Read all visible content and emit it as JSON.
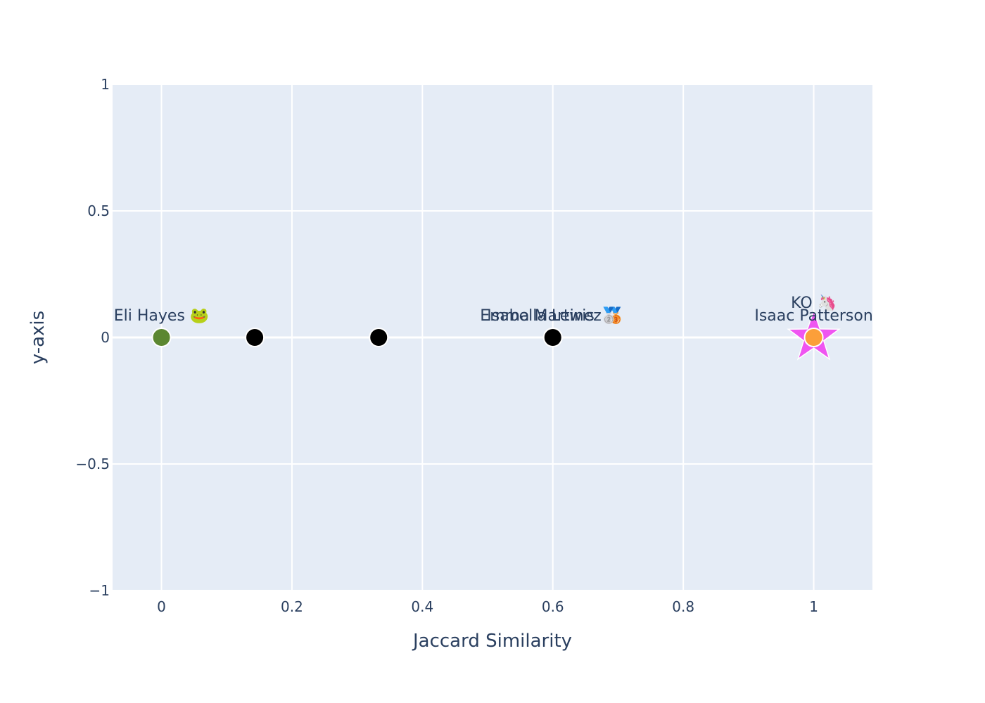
{
  "chart_data": {
    "type": "scatter",
    "xlabel": "Jaccard Similarity",
    "ylabel": "y-axis",
    "xlim": [
      -0.075,
      1.09
    ],
    "ylim": [
      -1,
      1
    ],
    "xticks": [
      0,
      0.2,
      0.4,
      0.6,
      0.8,
      1
    ],
    "xtick_labels": [
      "0",
      "0.2",
      "0.4",
      "0.6",
      "0.8",
      "1"
    ],
    "yticks": [
      -1,
      -0.5,
      0,
      0.5,
      1
    ],
    "ytick_labels": [
      "−1",
      "−0.5",
      "0",
      "0.5",
      "1"
    ],
    "grid": true,
    "plot_bg": "#e5ecf6",
    "points": [
      {
        "x": 0,
        "y": 0,
        "label": "Eli Hayes 🐸",
        "color": "#5b8731",
        "symbol": "circle"
      },
      {
        "x": 0.143,
        "y": 0,
        "label": "",
        "color": "#000000",
        "symbol": "circle"
      },
      {
        "x": 0.333,
        "y": 0,
        "label": "",
        "color": "#000000",
        "symbol": "circle"
      },
      {
        "x": 0.6,
        "y": 0,
        "label": "Emma Martinez 🥉",
        "color": "#000000",
        "symbol": "circle"
      },
      {
        "x": 0.6,
        "y": 0,
        "label": "Isabella Lewis 🥈",
        "color": "#000000",
        "symbol": "circle"
      },
      {
        "x": 1,
        "y": 0,
        "label": "KO 🦄",
        "color": "#ef55f1",
        "symbol": "star"
      },
      {
        "x": 1,
        "y": 0,
        "label": "Isaac Patterson",
        "color": "#fb9f3a",
        "symbol": "circle"
      }
    ]
  }
}
